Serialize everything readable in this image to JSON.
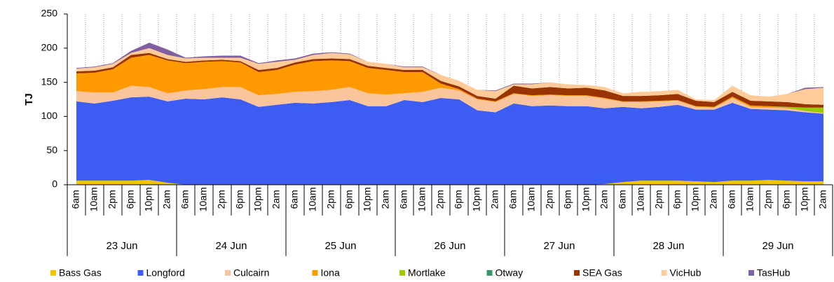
{
  "chart_data": {
    "type": "stacked-area",
    "y_label": "TJ",
    "categories": [
      "6am",
      "10am",
      "2pm",
      "6pm",
      "10pm",
      "2am",
      "6am",
      "10am",
      "2pm",
      "6pm",
      "10pm",
      "2am",
      "6am",
      "10am",
      "2pm",
      "6pm",
      "10pm",
      "2am",
      "6am",
      "10am",
      "2pm",
      "6pm",
      "10pm",
      "2am",
      "6am",
      "10am",
      "2pm",
      "6pm",
      "10pm",
      "2am",
      "6am",
      "10am",
      "2pm",
      "6pm",
      "10pm",
      "2am",
      "6am",
      "10am",
      "2pm",
      "6pm",
      "10pm",
      "2am"
    ],
    "day_labels": [
      "23 Jun",
      "24 Jun",
      "25 Jun",
      "26 Jun",
      "27 Jun",
      "28 Jun",
      "29 Jun"
    ],
    "ylim": [
      0,
      250
    ],
    "yticks": [
      0,
      50,
      100,
      150,
      200,
      250
    ],
    "series": [
      {
        "name": "Bass Gas",
        "color": "#f5c400",
        "values": [
          6,
          6,
          6,
          6,
          7,
          3,
          0,
          0,
          0,
          0,
          0,
          0,
          0,
          0,
          0,
          0,
          0,
          0,
          0,
          0,
          0,
          0,
          0,
          0,
          0,
          0,
          0,
          0,
          0,
          1,
          4,
          6,
          6,
          6,
          5,
          4,
          6,
          6,
          7,
          6,
          5,
          5
        ]
      },
      {
        "name": "Longford",
        "color": "#3c5cf2",
        "values": [
          116,
          113,
          117,
          122,
          122,
          119,
          126,
          125,
          128,
          125,
          114,
          117,
          120,
          119,
          121,
          124,
          115,
          115,
          124,
          121,
          127,
          125,
          109,
          106,
          119,
          115,
          116,
          115,
          115,
          111,
          110,
          106,
          108,
          111,
          105,
          106,
          114,
          105,
          103,
          103,
          101,
          99
        ]
      },
      {
        "name": "Culcairn",
        "color": "#fac59c",
        "values": [
          15,
          16,
          12,
          17,
          14,
          12,
          12,
          15,
          15,
          18,
          17,
          16,
          16,
          18,
          18,
          19,
          19,
          17,
          10,
          15,
          15,
          13,
          16,
          15,
          14,
          15,
          15,
          15,
          15,
          14,
          7,
          9,
          8,
          6,
          4,
          3,
          7,
          3,
          3,
          3,
          2,
          1
        ]
      },
      {
        "name": "Iona",
        "color": "#ff9900",
        "values": [
          26,
          29,
          34,
          41,
          47,
          48,
          40,
          40,
          38,
          36,
          34,
          35,
          40,
          44,
          43,
          38,
          37,
          36,
          31,
          29,
          6,
          2,
          1,
          1,
          1,
          1,
          1,
          1,
          1,
          1,
          1,
          1,
          1,
          1,
          1,
          1,
          2,
          2,
          2,
          1,
          0,
          0
        ]
      },
      {
        "name": "Mortlake",
        "color": "#99cc00",
        "values": [
          0,
          0,
          0,
          0,
          0,
          0,
          0,
          0,
          0,
          0,
          0,
          0,
          0,
          0,
          0,
          0,
          0,
          0,
          0,
          0,
          0,
          0,
          0,
          0,
          0,
          0,
          0,
          0,
          0,
          0,
          0,
          0,
          0,
          0,
          0,
          0,
          0,
          0,
          0,
          1,
          5,
          8
        ]
      },
      {
        "name": "Otway",
        "color": "#339966",
        "values": [
          0,
          0,
          0,
          0,
          0,
          0,
          0,
          0,
          0,
          0,
          0,
          0,
          0,
          0,
          0,
          0,
          0,
          0,
          0,
          0,
          0,
          0,
          0,
          0,
          0,
          0,
          0,
          0,
          0,
          0,
          0,
          0,
          0,
          0,
          0,
          0,
          0,
          0,
          0,
          0,
          0,
          0
        ]
      },
      {
        "name": "SEA Gas",
        "color": "#993300",
        "values": [
          3,
          3,
          3,
          4,
          3,
          2,
          2,
          2,
          2,
          2,
          3,
          3,
          3,
          3,
          3,
          3,
          3,
          3,
          3,
          3,
          4,
          4,
          4,
          4,
          11,
          10,
          11,
          10,
          11,
          11,
          8,
          8,
          8,
          9,
          8,
          7,
          7,
          7,
          7,
          7,
          5,
          4
        ]
      },
      {
        "name": "VicHub",
        "color": "#ffcc99",
        "values": [
          4,
          5,
          5,
          3,
          7,
          6,
          5,
          4,
          3,
          5,
          9,
          9,
          4,
          6,
          8,
          7,
          6,
          6,
          4,
          4,
          9,
          8,
          9,
          11,
          2,
          6,
          7,
          6,
          4,
          5,
          4,
          6,
          6,
          6,
          2,
          3,
          9,
          8,
          7,
          12,
          22,
          25
        ]
      },
      {
        "name": "TasHub",
        "color": "#7f5f9f",
        "values": [
          1,
          1,
          1,
          3,
          8,
          8,
          1,
          2,
          3,
          3,
          1,
          2,
          2,
          2,
          1,
          1,
          0,
          0,
          1,
          1,
          0,
          0,
          0,
          1,
          1,
          1,
          0,
          0,
          0,
          0,
          0,
          0,
          0,
          0,
          0,
          0,
          0,
          0,
          0,
          0,
          2,
          1
        ]
      }
    ]
  }
}
